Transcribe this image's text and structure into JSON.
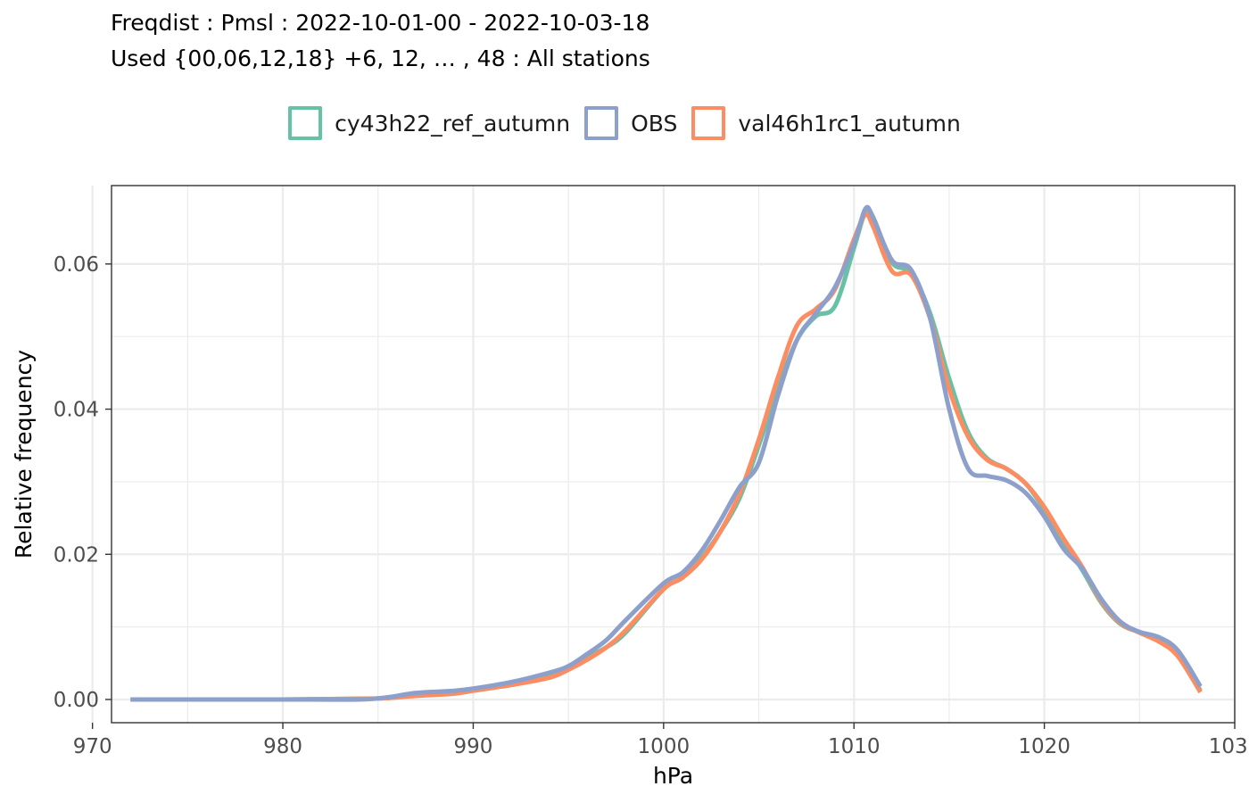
{
  "chart_data": {
    "type": "line",
    "title": "Freqdist : Pmsl : 2022-10-01-00 - 2022-10-03-18",
    "subtitle": "Used {00,06,12,18} +6, 12, … , 48 : All stations",
    "xlabel": "hPa",
    "ylabel": "Relative frequency",
    "xlim": [
      971,
      1030
    ],
    "ylim": [
      -0.0032,
      0.0708
    ],
    "x_ticks": [
      970,
      980,
      990,
      1000,
      1010,
      1020,
      1030
    ],
    "x_tick_labels": [
      "970",
      "980",
      "990",
      "1000",
      "1010",
      "1020",
      "1030"
    ],
    "y_ticks": [
      0,
      0.02,
      0.04,
      0.06
    ],
    "y_tick_labels": [
      "0.00",
      "0.02",
      "0.04",
      "0.06"
    ],
    "grid": true,
    "legend_position": "top",
    "x": [
      972,
      976,
      980,
      984,
      985.5,
      987,
      989,
      990,
      992,
      994,
      995,
      996,
      997,
      998,
      1000,
      1001,
      1002,
      1003,
      1004,
      1005,
      1006,
      1007,
      1008,
      1009,
      1010,
      1010.6,
      1011,
      1012,
      1013,
      1014,
      1015,
      1016,
      1017,
      1018,
      1019,
      1020,
      1021,
      1022,
      1023,
      1024,
      1025,
      1026,
      1027,
      1028.2
    ],
    "series": [
      {
        "name": "cy43h22_ref_autumn",
        "color": "#66C2A5",
        "values": [
          0,
          0,
          0,
          0.0001,
          0.0002,
          0.0006,
          0.0009,
          0.0013,
          0.002,
          0.0032,
          0.0043,
          0.0058,
          0.0072,
          0.0092,
          0.0152,
          0.0168,
          0.0195,
          0.0232,
          0.0278,
          0.035,
          0.0428,
          0.0495,
          0.0528,
          0.0542,
          0.0622,
          0.0672,
          0.0665,
          0.0602,
          0.0588,
          0.0532,
          0.0442,
          0.0368,
          0.0332,
          0.0318,
          0.0298,
          0.0262,
          0.0218,
          0.0178,
          0.0133,
          0.0104,
          0.0093,
          0.0085,
          0.0066,
          0.0012
        ]
      },
      {
        "name": "OBS",
        "color": "#8DA0CB",
        "values": [
          0,
          0,
          0,
          0,
          0.0003,
          0.0009,
          0.0012,
          0.0015,
          0.0024,
          0.0037,
          0.0046,
          0.0063,
          0.0082,
          0.0109,
          0.016,
          0.0175,
          0.0205,
          0.0247,
          0.0293,
          0.0326,
          0.0418,
          0.0495,
          0.0532,
          0.0568,
          0.0628,
          0.0676,
          0.0664,
          0.0605,
          0.0592,
          0.0525,
          0.04,
          0.0318,
          0.0308,
          0.0302,
          0.0285,
          0.0252,
          0.0208,
          0.018,
          0.0138,
          0.0107,
          0.0093,
          0.0086,
          0.0068,
          0.0018
        ]
      },
      {
        "name": "val46h1rc1_autumn",
        "color": "#FC8D62",
        "values": [
          0,
          0,
          0,
          0.0001,
          0.0002,
          0.0005,
          0.0008,
          0.0012,
          0.002,
          0.003,
          0.0041,
          0.0055,
          0.0072,
          0.0095,
          0.0152,
          0.0168,
          0.0193,
          0.0232,
          0.0284,
          0.0358,
          0.0443,
          0.0515,
          0.0538,
          0.0565,
          0.0634,
          0.0668,
          0.0652,
          0.059,
          0.0585,
          0.0525,
          0.0428,
          0.0362,
          0.033,
          0.0318,
          0.0298,
          0.0265,
          0.0222,
          0.0182,
          0.0135,
          0.0105,
          0.0092,
          0.008,
          0.006,
          0.001
        ]
      }
    ]
  }
}
